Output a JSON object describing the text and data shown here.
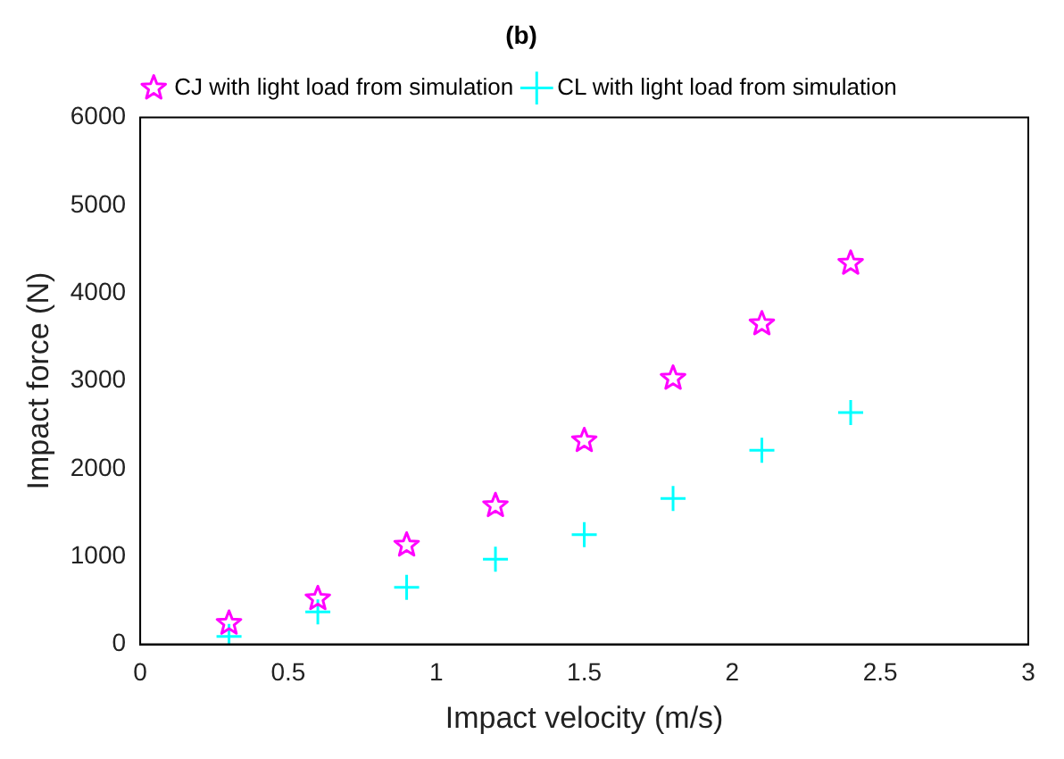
{
  "chart_data": {
    "type": "scatter",
    "title": "(b)",
    "xlabel": "Impact velocity (m/s)",
    "ylabel": "Impact force (N)",
    "x": [
      0.3,
      0.6,
      0.9,
      1.2,
      1.5,
      1.8,
      2.1,
      2.4
    ],
    "series": [
      {
        "name": "CJ with light load from simulation",
        "color": "#ff00ff",
        "marker": "star",
        "values": [
          240,
          520,
          1130,
          1580,
          2320,
          3030,
          3650,
          4340
        ]
      },
      {
        "name": "CL with light load from simulation",
        "color": "#00ffff",
        "marker": "cross",
        "values": [
          90,
          370,
          650,
          970,
          1250,
          1660,
          2210,
          2640
        ]
      }
    ],
    "xlim": [
      0,
      3
    ],
    "xticks": [
      0,
      0.5,
      1,
      1.5,
      2,
      2.5,
      3
    ],
    "ylim": [
      0,
      6000
    ],
    "yticks": [
      0,
      1000,
      2000,
      3000,
      4000,
      5000,
      6000
    ],
    "grid": false,
    "legend": "top"
  }
}
